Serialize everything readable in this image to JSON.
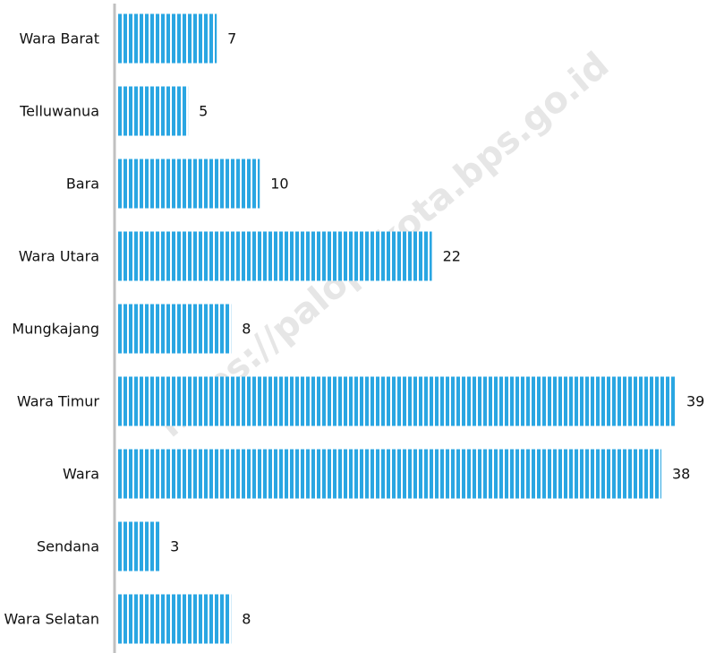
{
  "chart_data": {
    "type": "barh",
    "categories": [
      "Wara Barat",
      "Telluwanua",
      "Bara",
      "Wara Utara",
      "Mungkajang",
      "Wara Timur",
      "Wara",
      "Sendana",
      "Wara Selatan"
    ],
    "values": [
      7,
      5,
      10,
      22,
      8,
      39,
      38,
      3,
      8
    ],
    "color": "#2aa6e2",
    "watermark": "https://palopokota.bps.go.id"
  }
}
